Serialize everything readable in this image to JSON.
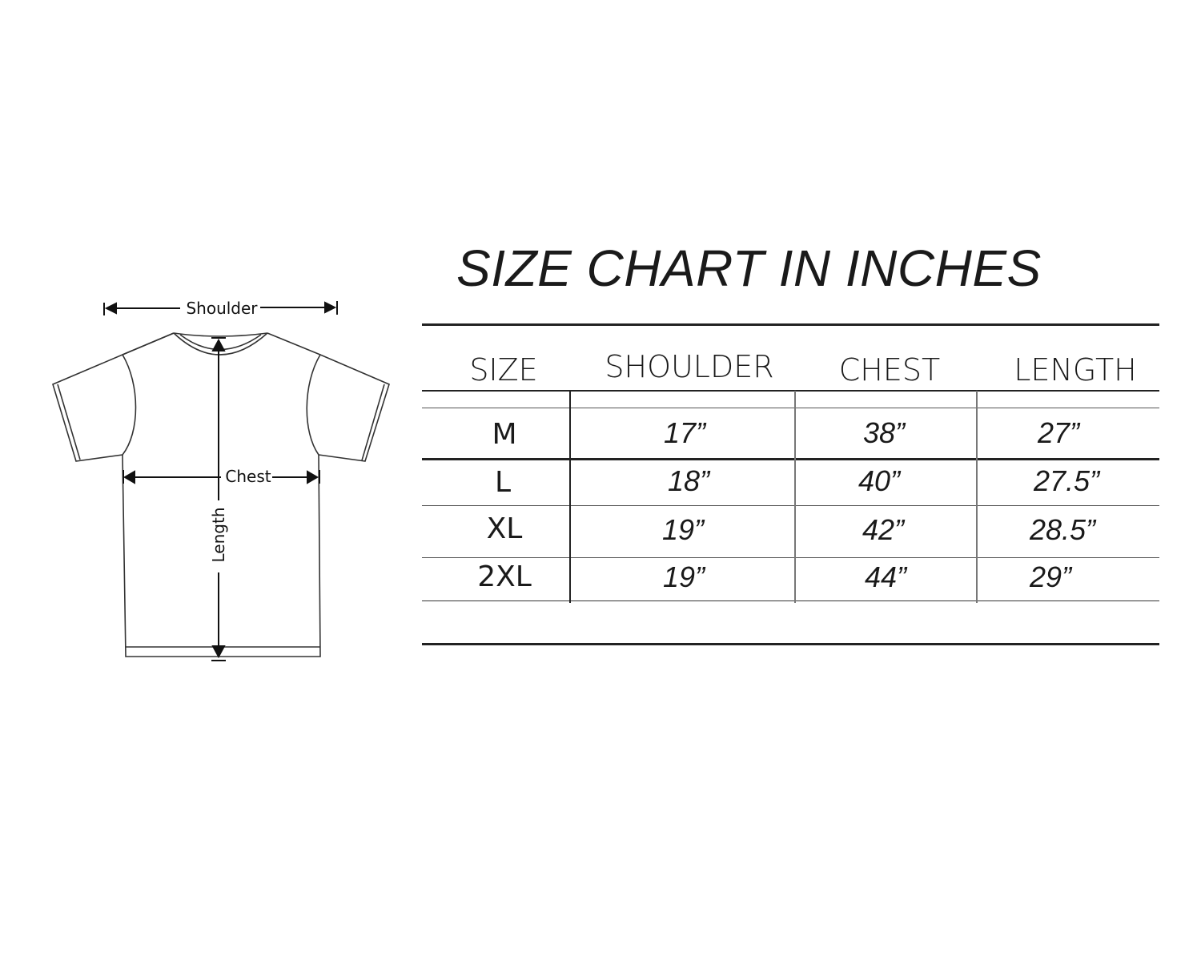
{
  "title": "SIZE CHART IN INCHES",
  "diagram": {
    "labels": {
      "shoulder": "Shoulder",
      "chest": "Chest",
      "length": "Length"
    },
    "icons": [
      "tshirt-outline",
      "dimension-arrow"
    ]
  },
  "table": {
    "headers": [
      "SIZE",
      "SHOULDER",
      "CHEST",
      "LENGTH"
    ],
    "rows": [
      [
        "M",
        "17”",
        "38”",
        "27”"
      ],
      [
        "L",
        "18”",
        "40”",
        "27.5”"
      ],
      [
        "XL",
        "19”",
        "42”",
        "28.5”"
      ],
      [
        "2XL",
        "19”",
        "44”",
        "29”"
      ]
    ]
  }
}
